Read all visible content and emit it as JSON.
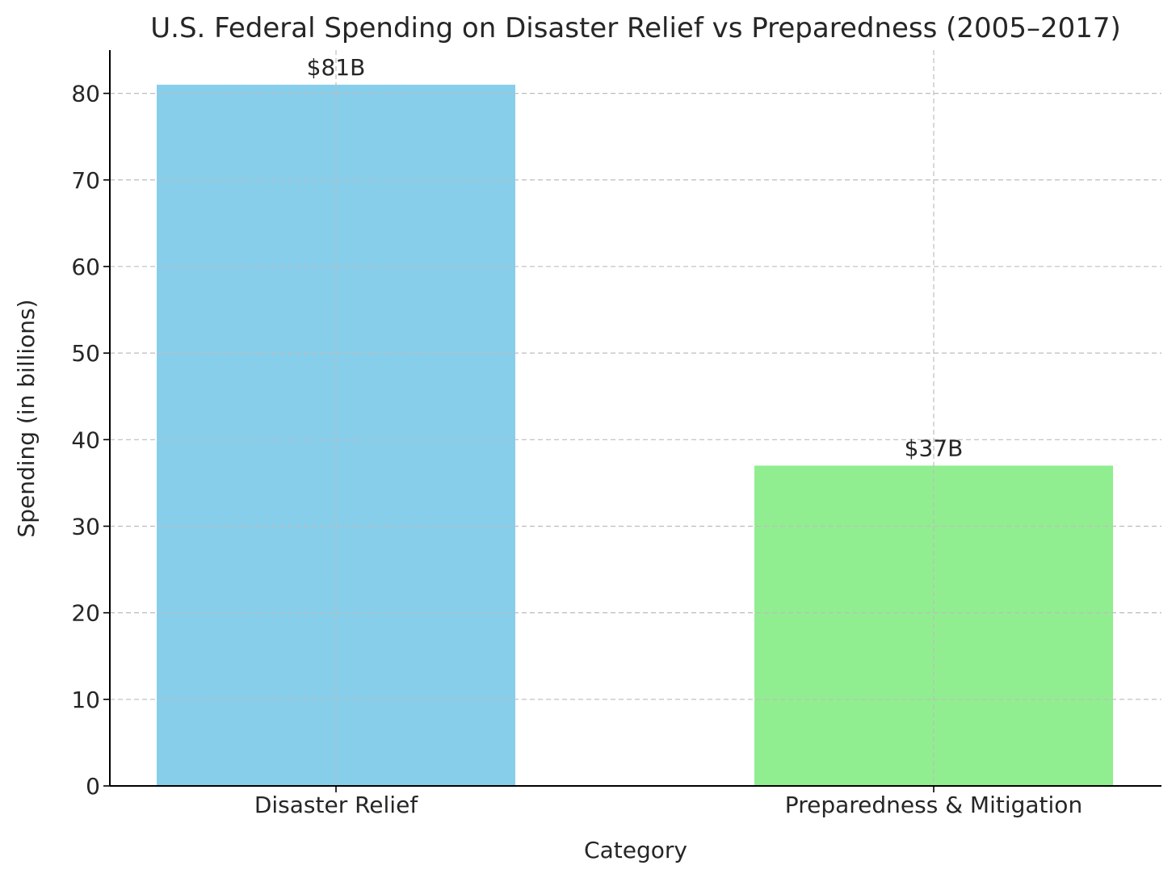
{
  "chart_data": {
    "type": "bar",
    "title": "U.S. Federal Spending on Disaster Relief vs Preparedness (2005–2017)",
    "xlabel": "Category",
    "ylabel": "Spending (in billions)",
    "categories": [
      "Disaster Relief",
      "Preparedness & Mitigation"
    ],
    "values": [
      81,
      37
    ],
    "data_labels": [
      "$81B",
      "$37B"
    ],
    "colors": [
      "#87CEEB",
      "#90EE90"
    ],
    "ylim": [
      0,
      85
    ],
    "yticks": [
      0,
      10,
      20,
      30,
      40,
      50,
      60,
      70,
      80
    ],
    "grid": true,
    "legend": "none"
  }
}
